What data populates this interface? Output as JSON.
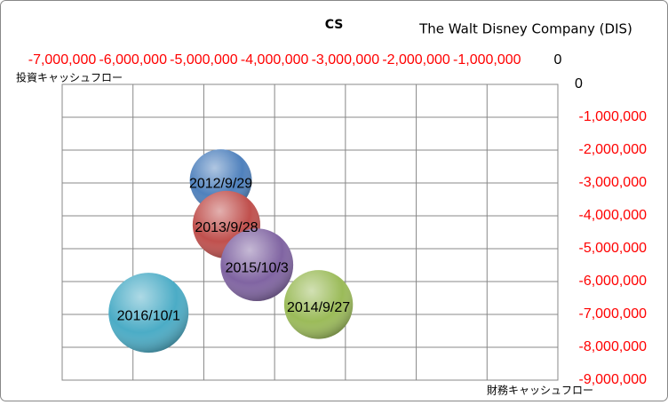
{
  "chart_data": {
    "type": "bubble",
    "title": "CS",
    "subtitle": "The Walt Disney Company (DIS)",
    "x_label": "投資キャッシュフロー",
    "y_label": "財務キャッシュフロー",
    "labels": [
      "2012/9/29",
      "2013/9/28",
      "2014/9/27",
      "2015/10/3",
      "2016/10/1"
    ],
    "x": [
      -4760000,
      -4680000,
      -3380000,
      -4250000,
      -5780000
    ],
    "y": [
      -2920000,
      -4270000,
      -6700000,
      -5490000,
      -6950000
    ],
    "sizes": [
      7966000,
      9452000,
      9780000,
      10909000,
      13213000
    ],
    "colors": [
      "#4f81bd",
      "#c0504d",
      "#9bbb59",
      "#8064a2",
      "#4bacc6"
    ],
    "xlim": [
      -7000000,
      0
    ],
    "ylim": [
      -9000000,
      0
    ],
    "xticks": [
      {
        "value": -7000000,
        "label": "-7,000,000"
      },
      {
        "value": -6000000,
        "label": "-6,000,000"
      },
      {
        "value": -5000000,
        "label": "-5,000,000"
      },
      {
        "value": -4000000,
        "label": "-4,000,000"
      },
      {
        "value": -3000000,
        "label": "-3,000,000"
      },
      {
        "value": -2000000,
        "label": "-2,000,000"
      },
      {
        "value": -1000000,
        "label": "-1,000,000"
      },
      0
    ],
    "yticks": [
      0,
      {
        "value": -1000000,
        "label": "-1,000,000"
      },
      {
        "value": -2000000,
        "label": "-2,000,000"
      },
      {
        "value": -3000000,
        "label": "-3,000,000"
      },
      {
        "value": -4000000,
        "label": "-4,000,000"
      },
      {
        "value": -5000000,
        "label": "-5,000,000"
      },
      {
        "value": -6000000,
        "label": "-6,000,000"
      },
      {
        "value": -7000000,
        "label": "-7,000,000"
      },
      {
        "value": -8000000,
        "label": "-8,000,000"
      },
      {
        "value": -9000000,
        "label": "-9,000,000"
      }
    ],
    "negative_tick_color": "#ff0000",
    "grid": true
  }
}
